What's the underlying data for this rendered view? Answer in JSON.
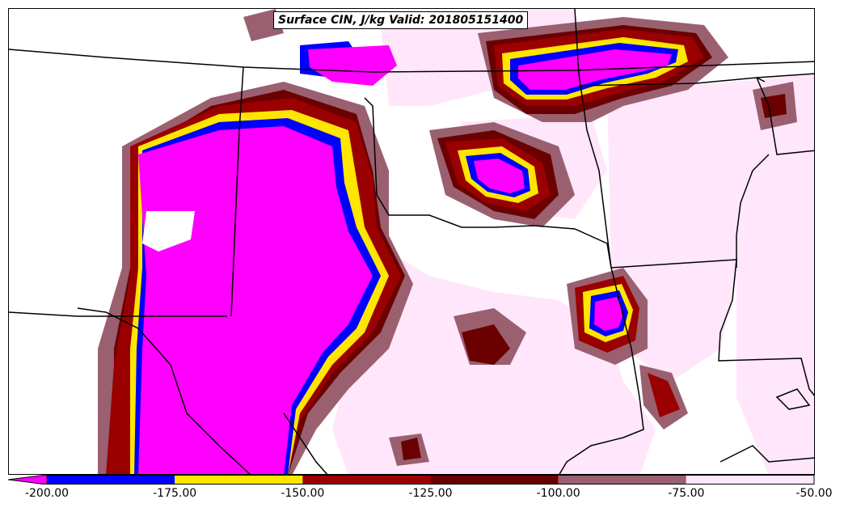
{
  "title": "Surface CIN, J/kg Valid: 201805151400",
  "colorbar": {
    "ticks": [
      "-200.00",
      "-175.00",
      "-150.00",
      "-125.00",
      "-100.00",
      "-75.00",
      "-50.00"
    ],
    "bins": [
      {
        "range": "< -200",
        "color": "#ff00ff"
      },
      {
        "range": "-200 to -175",
        "color": "#0000ff"
      },
      {
        "range": "-175 to -150",
        "color": "#ffe600"
      },
      {
        "range": "-150 to -125",
        "color": "#9b0000"
      },
      {
        "range": "-125 to -100",
        "color": "#6b0000"
      },
      {
        "range": "-100 to -75",
        "color": "#9a6070"
      },
      {
        "range": "-75 to -50",
        "color": "#ffe6fa"
      }
    ]
  },
  "colors": {
    "magenta": "#ff00ff",
    "blue": "#0000ff",
    "yellow": "#ffe600",
    "red": "#9b0000",
    "darkred": "#6b0000",
    "mauve": "#9a6070",
    "pink": "#ffe6fa",
    "border": "#000000"
  }
}
